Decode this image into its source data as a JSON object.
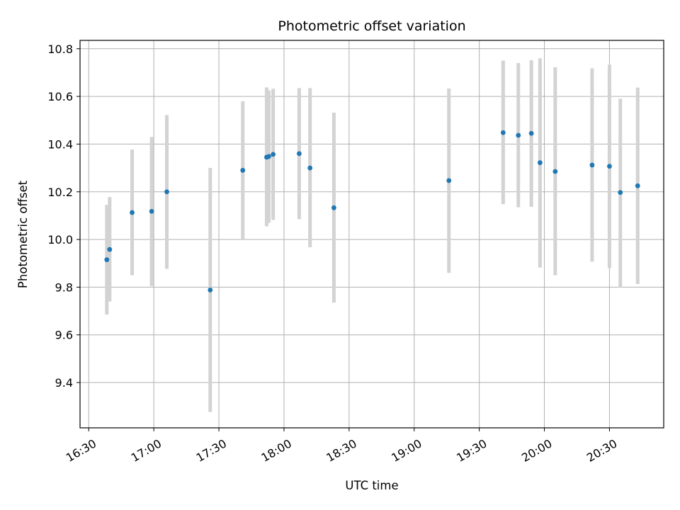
{
  "chart_data": {
    "type": "scatter",
    "title": "Photometric offset variation",
    "xlabel": "UTC time",
    "ylabel": "Photometric offset",
    "x_axis": {
      "kind": "time",
      "range": [
        "16:26",
        "20:55"
      ],
      "ticks": [
        "16:30",
        "17:00",
        "17:30",
        "18:00",
        "18:30",
        "19:00",
        "19:30",
        "20:00",
        "20:30"
      ]
    },
    "y_axis": {
      "range": [
        9.21,
        10.835
      ],
      "ticks": [
        9.4,
        9.6,
        9.8,
        10.0,
        10.2,
        10.4,
        10.6,
        10.8
      ]
    },
    "grid": true,
    "colors": {
      "point": "#1f77b4",
      "errorbar": "#d3d3d3",
      "grid": "#b0b0b0"
    },
    "points": [
      {
        "time": "16:39",
        "y": 9.915,
        "err_low": 9.685,
        "err_high": 10.145
      },
      {
        "time": "16:39",
        "y": 9.958,
        "err_low": 9.74,
        "err_high": 10.178
      },
      {
        "time": "16:50",
        "y": 10.113,
        "err_low": 9.85,
        "err_high": 10.377
      },
      {
        "time": "16:59",
        "y": 10.118,
        "err_low": 9.805,
        "err_high": 10.43
      },
      {
        "time": "17:06",
        "y": 10.2,
        "err_low": 9.877,
        "err_high": 10.522
      },
      {
        "time": "17:26",
        "y": 9.788,
        "err_low": 9.277,
        "err_high": 10.3
      },
      {
        "time": "17:41",
        "y": 10.29,
        "err_low": 10.0,
        "err_high": 10.58
      },
      {
        "time": "17:52",
        "y": 10.345,
        "err_low": 10.055,
        "err_high": 10.638
      },
      {
        "time": "17:53",
        "y": 10.348,
        "err_low": 10.07,
        "err_high": 10.625
      },
      {
        "time": "17:55",
        "y": 10.357,
        "err_low": 10.082,
        "err_high": 10.632
      },
      {
        "time": "18:07",
        "y": 10.36,
        "err_low": 10.085,
        "err_high": 10.635
      },
      {
        "time": "18:12",
        "y": 10.3,
        "err_low": 9.967,
        "err_high": 10.635
      },
      {
        "time": "18:23",
        "y": 10.133,
        "err_low": 9.735,
        "err_high": 10.532
      },
      {
        "time": "19:16",
        "y": 10.247,
        "err_low": 9.86,
        "err_high": 10.633
      },
      {
        "time": "19:41",
        "y": 10.448,
        "err_low": 10.148,
        "err_high": 10.75
      },
      {
        "time": "19:48",
        "y": 10.437,
        "err_low": 10.135,
        "err_high": 10.74
      },
      {
        "time": "19:54",
        "y": 10.445,
        "err_low": 10.137,
        "err_high": 10.752
      },
      {
        "time": "19:58",
        "y": 10.322,
        "err_low": 9.882,
        "err_high": 10.76
      },
      {
        "time": "20:05",
        "y": 10.285,
        "err_low": 9.85,
        "err_high": 10.722
      },
      {
        "time": "20:22",
        "y": 10.312,
        "err_low": 9.907,
        "err_high": 10.718
      },
      {
        "time": "20:30",
        "y": 10.307,
        "err_low": 9.88,
        "err_high": 10.733
      },
      {
        "time": "20:35",
        "y": 10.197,
        "err_low": 9.8,
        "err_high": 10.59
      },
      {
        "time": "20:43",
        "y": 10.225,
        "err_low": 9.813,
        "err_high": 10.637
      }
    ]
  }
}
